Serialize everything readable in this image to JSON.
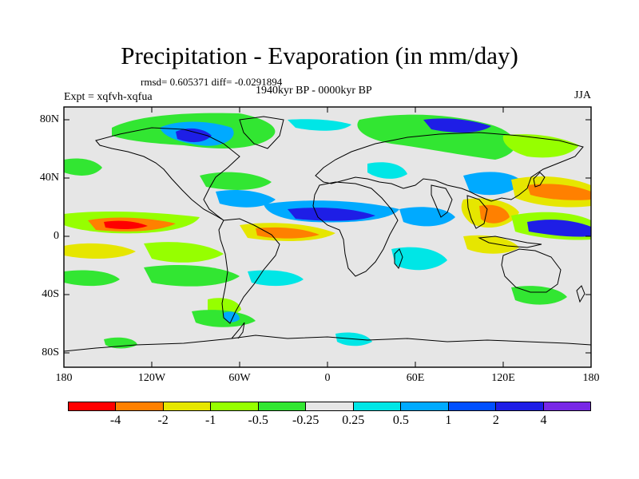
{
  "title": "Precipitation - Evaporation (in mm/day)",
  "stats_text": "rmsd= 0.605371 diff= -0.0291894",
  "period_text": "1940kyr BP - 0000kyr BP",
  "experiment_text": "Expt = xqfvh-xqfua",
  "season_text": "JJA",
  "map": {
    "background_color": "#e6e6e6",
    "coastline_color": "#000000",
    "lat_labels": [
      "80N",
      "40N",
      "0",
      "40S",
      "80S"
    ],
    "lon_labels": [
      "180",
      "120W",
      "60W",
      "0",
      "60E",
      "120E",
      "180"
    ]
  },
  "colorbar": {
    "colors": [
      "#ff0000",
      "#ff8000",
      "#e6e600",
      "#96ff00",
      "#32e632",
      "#e6e6e6",
      "#00e6e6",
      "#00aaff",
      "#0050ff",
      "#1e1ee6",
      "#7828e6"
    ],
    "labels": [
      "-4",
      "-2",
      "-1",
      "-0.5",
      "-0.25",
      "0.25",
      "0.5",
      "1",
      "2",
      "4"
    ]
  }
}
